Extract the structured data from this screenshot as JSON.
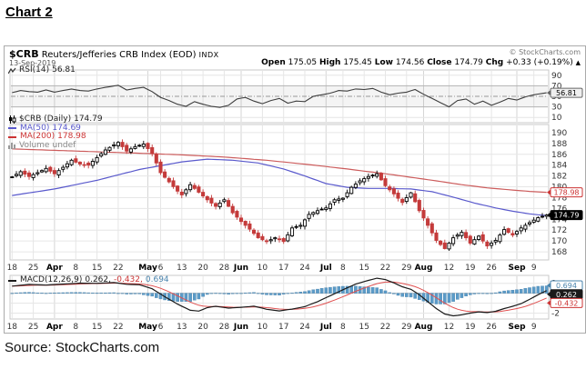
{
  "page": {
    "title": "Chart 2",
    "source": "Source: StockCharts.com"
  },
  "header": {
    "symbol": "$CRB",
    "name": "Reuters/Jefferies CRB Index (EOD)",
    "exchange": "INDX",
    "date": "13-Sep-2019",
    "copyright": "© StockCharts.com",
    "quote": {
      "open_label": "Open",
      "open": "175.05",
      "high_label": "High",
      "high": "175.45",
      "low_label": "Low",
      "low": "174.56",
      "close_label": "Close",
      "close": "174.79",
      "chg_label": "Chg",
      "chg": "+0.33 (+0.19%)",
      "dir": "▲"
    }
  },
  "legends": {
    "rsi": {
      "name": "RSI(14)",
      "value": "56.81"
    },
    "price_rows": [
      {
        "name": "$CRB (Daily)",
        "value": "174.79"
      },
      {
        "name": "MA(50)",
        "value": "174.69"
      },
      {
        "name": "MA(200)",
        "value": "178.98"
      },
      {
        "name": "Volume",
        "value": "undef"
      }
    ],
    "macd": {
      "name": "MACD(12,26,9)",
      "macd": "0.262,",
      "signal": "-0.432,",
      "hist": "0.694"
    }
  },
  "colors": {
    "up": "#000000",
    "down": "#c43b3b",
    "ma50": "#5959cc",
    "ma200": "#cc5c5c",
    "rsi": "#3d3d3d",
    "macd": "#1a1a1a",
    "signal": "#e05050",
    "hist": "#5b9bc8",
    "hist_stroke": "#4a84ad",
    "grid": "#e6e6e6",
    "grid_month": "#d6d6d6",
    "panel_border": "#c8c8c8",
    "axis_text": "#333333"
  },
  "chart_data": {
    "type": "candlestick",
    "title": "$CRB Reuters/Jefferies CRB Index (EOD) INDX",
    "date": "13-Sep-2019",
    "quote": {
      "open": 175.05,
      "high": 175.45,
      "low": 174.56,
      "close": 174.79,
      "chg": 0.33,
      "chg_pct": 0.19
    },
    "n_bars": 127,
    "x_ticks": [
      {
        "label": "18",
        "i": 0,
        "bold": false
      },
      {
        "label": "25",
        "i": 5,
        "bold": false
      },
      {
        "label": "Apr",
        "i": 10,
        "bold": true
      },
      {
        "label": "8",
        "i": 15,
        "bold": false
      },
      {
        "label": "15",
        "i": 20,
        "bold": false
      },
      {
        "label": "22",
        "i": 25,
        "bold": false
      },
      {
        "label": "May",
        "i": 32,
        "bold": true
      },
      {
        "label": "6",
        "i": 35,
        "bold": false
      },
      {
        "label": "13",
        "i": 40,
        "bold": false
      },
      {
        "label": "20",
        "i": 45,
        "bold": false
      },
      {
        "label": "28",
        "i": 50,
        "bold": false
      },
      {
        "label": "Jun",
        "i": 54,
        "bold": true
      },
      {
        "label": "10",
        "i": 59,
        "bold": false
      },
      {
        "label": "17",
        "i": 64,
        "bold": false
      },
      {
        "label": "24",
        "i": 69,
        "bold": false
      },
      {
        "label": "Jul",
        "i": 74,
        "bold": true
      },
      {
        "label": "8",
        "i": 78,
        "bold": false
      },
      {
        "label": "15",
        "i": 83,
        "bold": false
      },
      {
        "label": "22",
        "i": 88,
        "bold": false
      },
      {
        "label": "29",
        "i": 93,
        "bold": false
      },
      {
        "label": "Aug",
        "i": 97,
        "bold": true
      },
      {
        "label": "12",
        "i": 103,
        "bold": false
      },
      {
        "label": "19",
        "i": 108,
        "bold": false
      },
      {
        "label": "26",
        "i": 113,
        "bold": false
      },
      {
        "label": "Sep",
        "i": 119,
        "bold": true
      },
      {
        "label": "9",
        "i": 123,
        "bold": false
      }
    ],
    "panels": [
      {
        "id": "rsi",
        "type": "line",
        "indicator": "RSI(14)",
        "last": 56.81,
        "range": [
          0,
          100
        ],
        "y_ticks": [
          90,
          70,
          50,
          30,
          10
        ],
        "hlines": [
          70,
          50,
          30
        ],
        "points": [
          [
            0,
            57
          ],
          [
            2,
            61
          ],
          [
            4,
            59
          ],
          [
            6,
            58
          ],
          [
            8,
            62
          ],
          [
            10,
            58
          ],
          [
            12,
            61
          ],
          [
            14,
            64
          ],
          [
            16,
            61
          ],
          [
            18,
            60
          ],
          [
            20,
            64
          ],
          [
            22,
            67
          ],
          [
            25,
            71
          ],
          [
            27,
            62
          ],
          [
            29,
            65
          ],
          [
            31,
            67
          ],
          [
            33,
            59
          ],
          [
            35,
            48
          ],
          [
            37,
            42
          ],
          [
            39,
            35
          ],
          [
            41,
            31
          ],
          [
            43,
            40
          ],
          [
            45,
            35
          ],
          [
            47,
            31
          ],
          [
            49,
            29
          ],
          [
            51,
            33
          ],
          [
            53,
            45
          ],
          [
            55,
            48
          ],
          [
            57,
            41
          ],
          [
            59,
            36
          ],
          [
            61,
            42
          ],
          [
            63,
            46
          ],
          [
            65,
            37
          ],
          [
            67,
            41
          ],
          [
            69,
            40
          ],
          [
            71,
            50
          ],
          [
            73,
            53
          ],
          [
            75,
            56
          ],
          [
            77,
            61
          ],
          [
            79,
            60
          ],
          [
            81,
            64
          ],
          [
            83,
            63
          ],
          [
            85,
            65
          ],
          [
            87,
            58
          ],
          [
            89,
            53
          ],
          [
            91,
            56
          ],
          [
            93,
            58
          ],
          [
            95,
            63
          ],
          [
            97,
            54
          ],
          [
            99,
            46
          ],
          [
            101,
            38
          ],
          [
            103,
            30
          ],
          [
            105,
            42
          ],
          [
            107,
            45
          ],
          [
            109,
            35
          ],
          [
            111,
            41
          ],
          [
            113,
            33
          ],
          [
            115,
            39
          ],
          [
            117,
            46
          ],
          [
            119,
            43
          ],
          [
            121,
            49
          ],
          [
            123,
            53
          ],
          [
            126,
            56.81
          ]
        ]
      },
      {
        "id": "price",
        "type": "candlestick",
        "range": [
          166.5,
          191.5
        ],
        "y_ticks": [
          190,
          188,
          186,
          184,
          182,
          180,
          178,
          176,
          174,
          172,
          170,
          168
        ],
        "last_close": 174.79,
        "ma50_last": 174.69,
        "ma200_last": 178.98,
        "close_points": [
          [
            0,
            181.8
          ],
          [
            2,
            182.8
          ],
          [
            4,
            181.9
          ],
          [
            6,
            182.6
          ],
          [
            8,
            183.4
          ],
          [
            10,
            182.4
          ],
          [
            12,
            183.6
          ],
          [
            14,
            184.9
          ],
          [
            16,
            184.2
          ],
          [
            18,
            184.0
          ],
          [
            20,
            185.4
          ],
          [
            22,
            186.8
          ],
          [
            25,
            188.2
          ],
          [
            27,
            186.6
          ],
          [
            29,
            187.4
          ],
          [
            31,
            187.9
          ],
          [
            33,
            186.2
          ],
          [
            35,
            182.6
          ],
          [
            37,
            180.9
          ],
          [
            39,
            179.2
          ],
          [
            40,
            178.5
          ],
          [
            42,
            180.4
          ],
          [
            44,
            179.0
          ],
          [
            46,
            177.6
          ],
          [
            48,
            176.4
          ],
          [
            50,
            177.6
          ],
          [
            52,
            175.2
          ],
          [
            54,
            173.6
          ],
          [
            56,
            172.2
          ],
          [
            58,
            170.6
          ],
          [
            60,
            169.9
          ],
          [
            62,
            170.6
          ],
          [
            64,
            169.9
          ],
          [
            66,
            172.4
          ],
          [
            68,
            172.9
          ],
          [
            70,
            174.9
          ],
          [
            72,
            175.6
          ],
          [
            74,
            176.1
          ],
          [
            76,
            177.6
          ],
          [
            78,
            177.9
          ],
          [
            80,
            179.9
          ],
          [
            82,
            181.1
          ],
          [
            84,
            181.9
          ],
          [
            86,
            182.4
          ],
          [
            88,
            180.2
          ],
          [
            90,
            178.7
          ],
          [
            92,
            177.1
          ],
          [
            94,
            178.9
          ],
          [
            96,
            175.6
          ],
          [
            98,
            172.9
          ],
          [
            100,
            170.1
          ],
          [
            102,
            168.6
          ],
          [
            104,
            170.6
          ],
          [
            106,
            171.6
          ],
          [
            108,
            169.6
          ],
          [
            110,
            170.9
          ],
          [
            112,
            169.1
          ],
          [
            114,
            170.1
          ],
          [
            116,
            172.1
          ],
          [
            118,
            171.1
          ],
          [
            120,
            172.4
          ],
          [
            122,
            173.4
          ],
          [
            124,
            174.3
          ],
          [
            126,
            174.79
          ]
        ],
        "ma50_points": [
          [
            0,
            178.4
          ],
          [
            10,
            179.6
          ],
          [
            20,
            181.2
          ],
          [
            30,
            183.2
          ],
          [
            40,
            184.6
          ],
          [
            46,
            185.1
          ],
          [
            52,
            184.9
          ],
          [
            58,
            184.4
          ],
          [
            64,
            183.3
          ],
          [
            69,
            182.0
          ],
          [
            74,
            180.6
          ],
          [
            79,
            179.9
          ],
          [
            84,
            179.7
          ],
          [
            89,
            179.7
          ],
          [
            94,
            179.6
          ],
          [
            99,
            179.1
          ],
          [
            104,
            178.1
          ],
          [
            109,
            177.0
          ],
          [
            114,
            176.1
          ],
          [
            118,
            175.5
          ],
          [
            122,
            175.0
          ],
          [
            126,
            174.69
          ]
        ],
        "ma200_points": [
          [
            0,
            187.0
          ],
          [
            15,
            186.6
          ],
          [
            30,
            186.2
          ],
          [
            40,
            185.9
          ],
          [
            50,
            185.5
          ],
          [
            60,
            184.9
          ],
          [
            70,
            184.1
          ],
          [
            80,
            183.2
          ],
          [
            90,
            182.2
          ],
          [
            100,
            181.1
          ],
          [
            106,
            180.4
          ],
          [
            112,
            179.8
          ],
          [
            118,
            179.4
          ],
          [
            122,
            179.15
          ],
          [
            126,
            178.98
          ]
        ]
      },
      {
        "id": "macd",
        "type": "line+histogram",
        "indicator": "MACD(12,26,9)",
        "macd_last": 0.262,
        "signal_last": -0.432,
        "hist_last": 0.694,
        "range": [
          -2.6,
          1.8
        ],
        "y_ticks": [
          1,
          -1,
          -2
        ],
        "signal_ema": 9,
        "macd_points": [
          [
            0,
            0.72
          ],
          [
            4,
            0.88
          ],
          [
            8,
            0.82
          ],
          [
            12,
            0.92
          ],
          [
            16,
            1.02
          ],
          [
            20,
            1.0
          ],
          [
            24,
            1.08
          ],
          [
            27,
            0.9
          ],
          [
            30,
            0.86
          ],
          [
            33,
            0.45
          ],
          [
            36,
            -0.35
          ],
          [
            39,
            -1.1
          ],
          [
            42,
            -1.72
          ],
          [
            44,
            -1.8
          ],
          [
            46,
            -1.45
          ],
          [
            48,
            -1.32
          ],
          [
            51,
            -1.5
          ],
          [
            54,
            -1.42
          ],
          [
            57,
            -1.3
          ],
          [
            60,
            -1.62
          ],
          [
            63,
            -1.78
          ],
          [
            66,
            -1.6
          ],
          [
            69,
            -1.35
          ],
          [
            72,
            -0.85
          ],
          [
            75,
            -0.25
          ],
          [
            78,
            0.35
          ],
          [
            81,
            0.92
          ],
          [
            84,
            1.3
          ],
          [
            86,
            1.52
          ],
          [
            88,
            1.38
          ],
          [
            90,
            1.05
          ],
          [
            92,
            0.65
          ],
          [
            94,
            0.4
          ],
          [
            96,
            -0.15
          ],
          [
            98,
            -0.85
          ],
          [
            100,
            -1.55
          ],
          [
            102,
            -2.1
          ],
          [
            104,
            -2.28
          ],
          [
            106,
            -2.18
          ],
          [
            108,
            -2.0
          ],
          [
            110,
            -1.88
          ],
          [
            112,
            -1.95
          ],
          [
            114,
            -1.82
          ],
          [
            116,
            -1.55
          ],
          [
            118,
            -1.32
          ],
          [
            120,
            -1.05
          ],
          [
            122,
            -0.62
          ],
          [
            124,
            -0.15
          ],
          [
            126,
            0.262
          ]
        ]
      }
    ]
  }
}
